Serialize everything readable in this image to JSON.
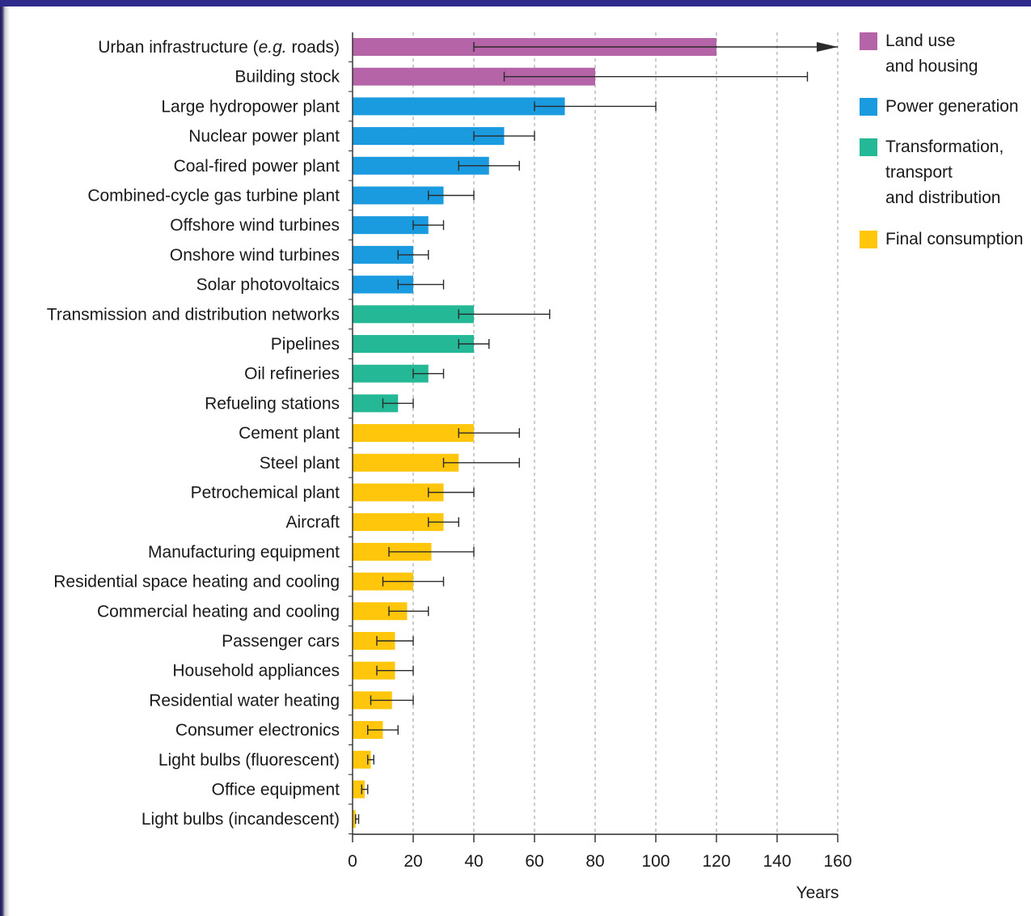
{
  "chart_data": {
    "type": "bar",
    "orientation": "horizontal",
    "title": "",
    "xlabel": "Years",
    "ylabel": "",
    "xlim": [
      0,
      160
    ],
    "x_ticks": [
      "0",
      "20",
      "40",
      "60",
      "80",
      "100",
      "120",
      "140",
      "160"
    ],
    "grid": "vertical dashed",
    "legend_position": "top-right",
    "groups": [
      {
        "key": "land",
        "label_lines": [
          "Land use",
          "and housing"
        ],
        "color": "#b565a7"
      },
      {
        "key": "power",
        "label_lines": [
          "Power generation"
        ],
        "color": "#1a9be0"
      },
      {
        "key": "transform",
        "label_lines": [
          "Transformation,",
          "transport",
          "and distribution"
        ],
        "color": "#25b896"
      },
      {
        "key": "final",
        "label_lines": [
          "Final consumption"
        ],
        "color": "#ffc60b"
      }
    ],
    "categories": [
      {
        "label_pre": "Urban infrastructure (",
        "label_ital": "e.g.",
        "label_post": " roads)",
        "group": "land",
        "value": 120,
        "err_low": 40,
        "err_high": 160,
        "err_arrow": true
      },
      {
        "label": "Building stock",
        "group": "land",
        "value": 80,
        "err_low": 50,
        "err_high": 150
      },
      {
        "label": "Large hydropower plant",
        "group": "power",
        "value": 70,
        "err_low": 60,
        "err_high": 100
      },
      {
        "label": "Nuclear power plant",
        "group": "power",
        "value": 50,
        "err_low": 40,
        "err_high": 60
      },
      {
        "label": "Coal-fired power plant",
        "group": "power",
        "value": 45,
        "err_low": 35,
        "err_high": 55
      },
      {
        "label": "Combined-cycle gas turbine plant",
        "group": "power",
        "value": 30,
        "err_low": 25,
        "err_high": 40
      },
      {
        "label": "Offshore wind turbines",
        "group": "power",
        "value": 25,
        "err_low": 20,
        "err_high": 30
      },
      {
        "label": "Onshore wind turbines",
        "group": "power",
        "value": 20,
        "err_low": 15,
        "err_high": 25
      },
      {
        "label": "Solar photovoltaics",
        "group": "power",
        "value": 20,
        "err_low": 15,
        "err_high": 30
      },
      {
        "label": "Transmission and distribution networks",
        "group": "transform",
        "value": 40,
        "err_low": 35,
        "err_high": 65
      },
      {
        "label": "Pipelines",
        "group": "transform",
        "value": 40,
        "err_low": 35,
        "err_high": 45
      },
      {
        "label": "Oil refineries",
        "group": "transform",
        "value": 25,
        "err_low": 20,
        "err_high": 30
      },
      {
        "label": "Refueling stations",
        "group": "transform",
        "value": 15,
        "err_low": 10,
        "err_high": 20
      },
      {
        "label": "Cement plant",
        "group": "final",
        "value": 40,
        "err_low": 35,
        "err_high": 55
      },
      {
        "label": "Steel plant",
        "group": "final",
        "value": 35,
        "err_low": 30,
        "err_high": 55
      },
      {
        "label": "Petrochemical plant",
        "group": "final",
        "value": 30,
        "err_low": 25,
        "err_high": 40
      },
      {
        "label": "Aircraft",
        "group": "final",
        "value": 30,
        "err_low": 25,
        "err_high": 35
      },
      {
        "label": "Manufacturing equipment",
        "group": "final",
        "value": 26,
        "err_low": 12,
        "err_high": 40
      },
      {
        "label": "Residential space heating and cooling",
        "group": "final",
        "value": 20,
        "err_low": 10,
        "err_high": 30
      },
      {
        "label": "Commercial heating and cooling",
        "group": "final",
        "value": 18,
        "err_low": 12,
        "err_high": 25
      },
      {
        "label": "Passenger cars",
        "group": "final",
        "value": 14,
        "err_low": 8,
        "err_high": 20
      },
      {
        "label": "Household appliances",
        "group": "final",
        "value": 14,
        "err_low": 8,
        "err_high": 20
      },
      {
        "label": "Residential water heating",
        "group": "final",
        "value": 13,
        "err_low": 6,
        "err_high": 20
      },
      {
        "label": "Consumer electronics",
        "group": "final",
        "value": 10,
        "err_low": 5,
        "err_high": 15
      },
      {
        "label": "Light bulbs (fluorescent)",
        "group": "final",
        "value": 6,
        "err_low": 5,
        "err_high": 7
      },
      {
        "label": "Office equipment",
        "group": "final",
        "value": 4,
        "err_low": 3,
        "err_high": 5
      },
      {
        "label": "Light bulbs (incandescent)",
        "group": "final",
        "value": 1,
        "err_low": 1,
        "err_high": 2
      }
    ]
  }
}
